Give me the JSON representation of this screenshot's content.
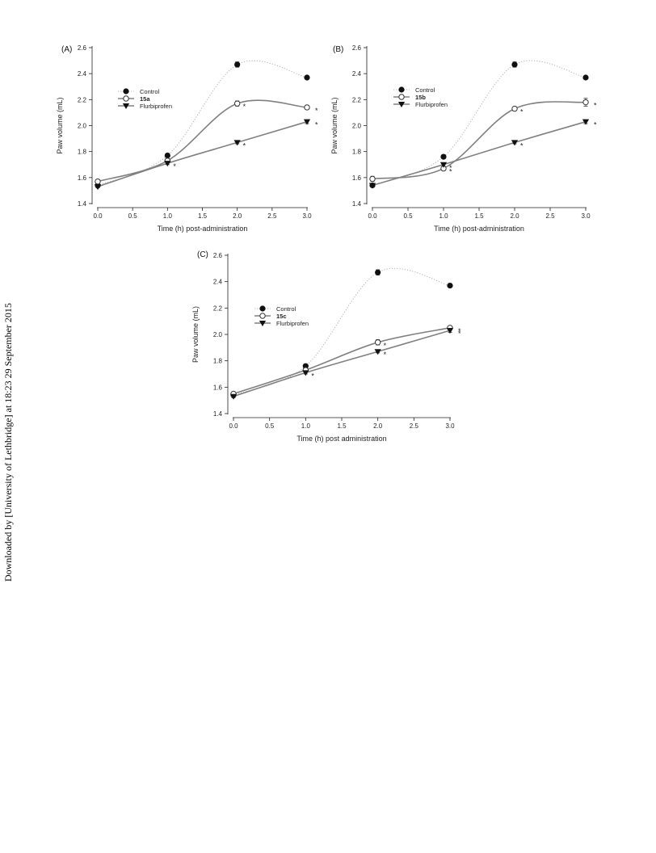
{
  "side_note": "Downloaded by [University of Lethbridge] at 18:23 29 September 2015",
  "chart_data": [
    {
      "type": "line",
      "panel_label": "(A)",
      "xlabel": "Time (h) post-administration",
      "ylabel": "Paw volume (mL)",
      "xlim": [
        0,
        3
      ],
      "ylim": [
        1.4,
        2.6
      ],
      "x_ticks": [
        "0.0",
        "0.5",
        "1.0",
        "1.5",
        "2.0",
        "2.5",
        "3.0"
      ],
      "y_ticks": [
        "1.4",
        "1.6",
        "1.8",
        "2.0",
        "2.2",
        "2.4",
        "2.6"
      ],
      "legend_position": "upper-left",
      "series": [
        {
          "name": "Control",
          "marker": "filled-circle",
          "style": "dotted",
          "color": "#b0b0b0",
          "x": [
            0,
            1,
            2,
            3
          ],
          "y": [
            1.54,
            1.77,
            2.47,
            2.37
          ],
          "err": [
            0.01,
            0.015,
            0.02,
            0.01
          ]
        },
        {
          "name": "15a",
          "marker": "open-circle",
          "style": "solid",
          "color": "#808080",
          "x": [
            0,
            1,
            2,
            3
          ],
          "y": [
            1.57,
            1.73,
            2.17,
            2.14
          ],
          "err": [
            0.01,
            0.01,
            0.02,
            0.01
          ],
          "significant": [
            "",
            "",
            "*",
            "*"
          ]
        },
        {
          "name": "Flurbiprofen",
          "marker": "filled-triangle-down",
          "style": "solid",
          "color": "#808080",
          "x": [
            0,
            1,
            2,
            3
          ],
          "y": [
            1.53,
            1.71,
            1.87,
            2.03
          ],
          "err": [
            0.01,
            0.01,
            0.01,
            0.015
          ],
          "significant": [
            "",
            "*",
            "*",
            "*"
          ]
        }
      ]
    },
    {
      "type": "line",
      "panel_label": "(B)",
      "xlabel": "Time (h) post-administration",
      "ylabel": "Paw volume (mL)",
      "xlim": [
        0,
        3
      ],
      "ylim": [
        1.4,
        2.6
      ],
      "x_ticks": [
        "0.0",
        "0.5",
        "1.0",
        "1.5",
        "2.0",
        "2.5",
        "3.0"
      ],
      "y_ticks": [
        "1.4",
        "1.6",
        "1.8",
        "2.0",
        "2.2",
        "2.4",
        "2.6"
      ],
      "legend_position": "upper-left",
      "series": [
        {
          "name": "Control",
          "marker": "filled-circle",
          "style": "dotted",
          "color": "#b0b0b0",
          "x": [
            0,
            1,
            2,
            3
          ],
          "y": [
            1.54,
            1.76,
            2.47,
            2.37
          ],
          "err": [
            0.01,
            0.015,
            0.02,
            0.01
          ]
        },
        {
          "name": "15b",
          "marker": "open-circle",
          "style": "solid",
          "color": "#808080",
          "x": [
            0,
            1,
            2,
            3
          ],
          "y": [
            1.59,
            1.67,
            2.13,
            2.18
          ],
          "err": [
            0.02,
            0.01,
            0.015,
            0.03
          ],
          "significant": [
            "",
            "*",
            "*",
            "*"
          ]
        },
        {
          "name": "Flurbiprofen",
          "marker": "filled-triangle-down",
          "style": "solid",
          "color": "#808080",
          "x": [
            0,
            1,
            2,
            3
          ],
          "y": [
            1.54,
            1.7,
            1.87,
            2.03
          ],
          "err": [
            0.01,
            0.01,
            0.01,
            0.015
          ],
          "significant": [
            "",
            "*",
            "*",
            "*"
          ]
        }
      ]
    },
    {
      "type": "line",
      "panel_label": "(C)",
      "xlabel": "Time (h) post administration",
      "ylabel": "Paw volume (mL)",
      "xlim": [
        0,
        3
      ],
      "ylim": [
        1.4,
        2.6
      ],
      "x_ticks": [
        "0.0",
        "0.5",
        "1.0",
        "1.5",
        "2.0",
        "2.5",
        "3.0"
      ],
      "y_ticks": [
        "1.4",
        "1.6",
        "1.8",
        "2.0",
        "2.2",
        "2.4",
        "2.6"
      ],
      "legend_position": "upper-left",
      "series": [
        {
          "name": "Control",
          "marker": "filled-circle",
          "style": "dotted",
          "color": "#b0b0b0",
          "x": [
            0,
            1,
            2,
            3
          ],
          "y": [
            1.54,
            1.76,
            2.47,
            2.37
          ],
          "err": [
            0.01,
            0.015,
            0.02,
            0.01
          ]
        },
        {
          "name": "15c",
          "marker": "open-circle",
          "style": "solid",
          "color": "#808080",
          "x": [
            0,
            1,
            2,
            3
          ],
          "y": [
            1.55,
            1.73,
            1.94,
            2.05
          ],
          "err": [
            0.01,
            0.01,
            0.02,
            0.01
          ],
          "significant": [
            "",
            "",
            "*",
            "*"
          ]
        },
        {
          "name": "Flurbiprofen",
          "marker": "filled-triangle-down",
          "style": "solid",
          "color": "#808080",
          "x": [
            0,
            1,
            2,
            3
          ],
          "y": [
            1.53,
            1.71,
            1.87,
            2.03
          ],
          "err": [
            0.01,
            0.01,
            0.01,
            0.015
          ],
          "significant": [
            "",
            "*",
            "*",
            "*"
          ]
        }
      ]
    }
  ]
}
